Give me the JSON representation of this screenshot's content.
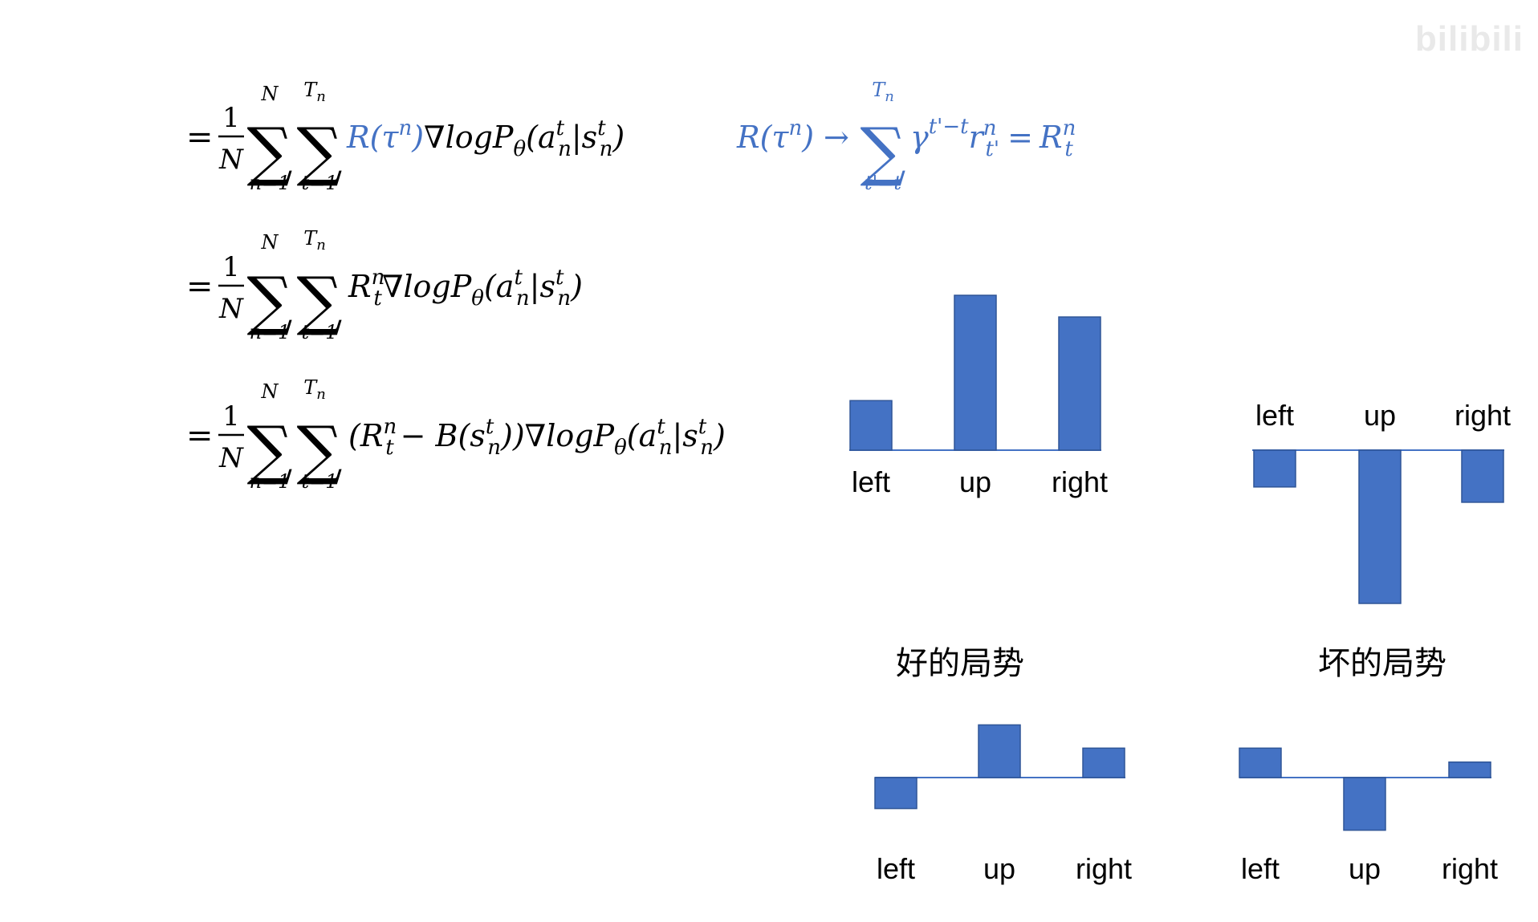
{
  "watermark": "bilibili",
  "colors": {
    "bar": "#4472C4",
    "formula_highlight": "#4472C4",
    "axis": "#4472C4"
  },
  "formulas": {
    "line1": {
      "eq": "=",
      "frac_num": "1",
      "frac_den": "N",
      "sum1_top": "N",
      "sum1_bottom": "n=1",
      "sum2_top": "T",
      "sum2_top_sub": "n",
      "sum2_bottom": "t=1",
      "highlight": "R(τ",
      "highlight_sup": "n",
      "highlight_close": ")",
      "grad": "∇logP",
      "grad_sub": "θ",
      "arg_open": "(a",
      "arg_a_sup": "t",
      "arg_a_sub": "n",
      "arg_bar": "|s",
      "arg_s_sup": "t",
      "arg_s_sub": "n",
      "arg_close": ")"
    },
    "line2": {
      "eq": "=",
      "frac_num": "1",
      "frac_den": "N",
      "sum1_top": "N",
      "sum1_bottom": "n=1",
      "sum2_top": "T",
      "sum2_top_sub": "n",
      "sum2_bottom": "t=1",
      "R": "R",
      "R_sup": "n",
      "R_sub": "t",
      "grad": "∇logP",
      "grad_sub": "θ",
      "arg_open": "(a",
      "arg_a_sup": "t",
      "arg_a_sub": "n",
      "arg_bar": "|s",
      "arg_s_sup": "t",
      "arg_s_sub": "n",
      "arg_close": ")"
    },
    "line3": {
      "eq": "=",
      "frac_num": "1",
      "frac_den": "N",
      "sum1_top": "N",
      "sum1_bottom": "n=1",
      "sum2_top": "T",
      "sum2_top_sub": "n",
      "sum2_bottom": "t=1",
      "open": "(R",
      "R_sup": "n",
      "R_sub": "t",
      "minus": "− B(s",
      "B_sup": "t",
      "B_sub": "n",
      "B_close": "))",
      "grad": "∇logP",
      "grad_sub": "θ",
      "arg_open": "(a",
      "arg_a_sup": "t",
      "arg_a_sub": "n",
      "arg_bar": "|s",
      "arg_s_sup": "t",
      "arg_s_sub": "n",
      "arg_close": ")"
    },
    "definition": {
      "lhs": "R(τ",
      "lhs_sup": "n",
      "lhs_close": ")",
      "arrow": "→",
      "sum_top": "T",
      "sum_top_sub": "n",
      "sum_bottom": "t'=t",
      "gamma": "γ",
      "gamma_sup": "t'−t",
      "r": "r",
      "r_sup": "n",
      "r_sub": "t'",
      "eq": "=",
      "R": "R",
      "R_sup": "n",
      "R_sub": "t"
    }
  },
  "captions": {
    "good": "好的局势",
    "bad": "坏的局势"
  },
  "chart_data": [
    {
      "type": "bar",
      "categories": [
        "left",
        "up",
        "right"
      ],
      "values": [
        0.32,
        1.0,
        0.86
      ],
      "ylim": [
        -1.0,
        1.0
      ]
    },
    {
      "type": "bar",
      "categories": [
        "left",
        "up",
        "right"
      ],
      "values": [
        -0.24,
        -1.0,
        -0.34
      ],
      "ylim": [
        -1.0,
        1.0
      ]
    },
    {
      "type": "bar",
      "categories": [
        "left",
        "up",
        "right"
      ],
      "values": [
        -0.2,
        0.34,
        0.19
      ],
      "ylim": [
        -1.0,
        1.0
      ]
    },
    {
      "type": "bar",
      "categories": [
        "left",
        "up",
        "right"
      ],
      "values": [
        0.19,
        -0.34,
        0.1
      ],
      "ylim": [
        -1.0,
        1.0
      ]
    }
  ]
}
